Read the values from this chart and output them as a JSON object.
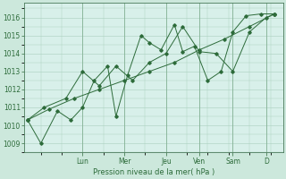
{
  "xlabel": "Pression niveau de la mer( hPa )",
  "background_color": "#cce8dc",
  "plot_bg_color": "#d8f0ea",
  "grid_color": "#aacfbe",
  "line_color": "#2d6b3a",
  "ylim": [
    1008.5,
    1016.8
  ],
  "yticks": [
    1009,
    1010,
    1011,
    1012,
    1013,
    1014,
    1015,
    1016
  ],
  "day_labels": [
    "Lun",
    "Mer",
    "Jeu",
    "Ven",
    "Sam",
    "D"
  ],
  "day_positions": [
    3.5,
    6.0,
    8.5,
    10.5,
    12.5,
    14.5
  ],
  "xlim": [
    0,
    15.5
  ],
  "series": [
    {
      "x": [
        0.2,
        1.5,
        3.0,
        4.5,
        6.0,
        7.5,
        9.0,
        10.5,
        12.0,
        13.5,
        15.0
      ],
      "y": [
        1010.3,
        1010.9,
        1011.5,
        1012.0,
        1012.5,
        1013.0,
        1013.5,
        1014.2,
        1014.8,
        1015.5,
        1016.2
      ]
    },
    {
      "x": [
        0.2,
        1.2,
        2.5,
        3.5,
        4.5,
        5.5,
        6.5,
        7.5,
        8.5,
        9.5,
        10.5,
        11.5,
        12.5,
        13.5,
        14.5,
        15.0
      ],
      "y": [
        1010.3,
        1011.0,
        1011.5,
        1013.0,
        1012.2,
        1013.3,
        1012.5,
        1013.5,
        1014.0,
        1015.5,
        1014.1,
        1014.0,
        1013.0,
        1015.2,
        1016.0,
        1016.2
      ]
    },
    {
      "x": [
        0.2,
        1.0,
        2.0,
        2.8,
        3.5,
        4.2,
        5.0,
        5.5,
        6.2,
        7.0,
        7.5,
        8.2,
        9.0,
        9.5,
        10.2,
        11.0,
        11.8,
        12.5,
        13.3,
        14.2,
        15.0
      ],
      "y": [
        1010.3,
        1009.0,
        1010.8,
        1010.3,
        1011.0,
        1012.5,
        1013.3,
        1010.5,
        1012.8,
        1015.0,
        1014.6,
        1014.2,
        1015.6,
        1014.1,
        1014.4,
        1012.5,
        1013.0,
        1015.2,
        1016.1,
        1016.2,
        1016.2
      ]
    }
  ]
}
